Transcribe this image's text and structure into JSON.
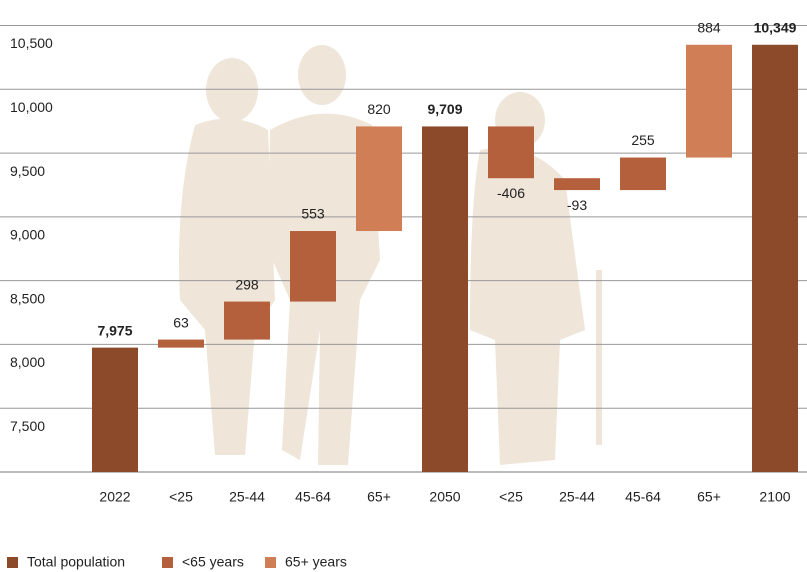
{
  "chart_data": {
    "type": "waterfall",
    "categories": [
      "2022",
      "<25",
      "25-44",
      "45-64",
      "65+",
      "2050",
      "<25",
      "25-44",
      "45-64",
      "65+",
      "2100"
    ],
    "series": [
      {
        "name": "Total population",
        "color": "#8d4a2a",
        "total": true,
        "values": [
          7975,
          null,
          null,
          null,
          null,
          9709,
          null,
          null,
          null,
          null,
          10349
        ],
        "value_labels": [
          "7,975",
          null,
          null,
          null,
          null,
          "9,709",
          null,
          null,
          null,
          null,
          "10,349"
        ]
      },
      {
        "name": "<65 years",
        "color": "#b5603c",
        "values": [
          null,
          63,
          298,
          553,
          null,
          null,
          -406,
          -93,
          255,
          null,
          null
        ]
      },
      {
        "name": "65+ years",
        "color": "#d07e56",
        "values": [
          null,
          null,
          null,
          null,
          820,
          null,
          null,
          null,
          null,
          884,
          null
        ]
      }
    ],
    "ylim": [
      7000,
      10700
    ],
    "yticks": [
      {
        "value": 7500,
        "label": "7,500"
      },
      {
        "value": 8000,
        "label": "8,000"
      },
      {
        "value": 8500,
        "label": "8,500"
      },
      {
        "value": 9000,
        "label": "9,000"
      },
      {
        "value": 9500,
        "label": "9,500"
      },
      {
        "value": 10000,
        "label": "10,000"
      },
      {
        "value": 10500,
        "label": "10,500"
      }
    ],
    "grid": true,
    "legend": "bottom-left"
  }
}
